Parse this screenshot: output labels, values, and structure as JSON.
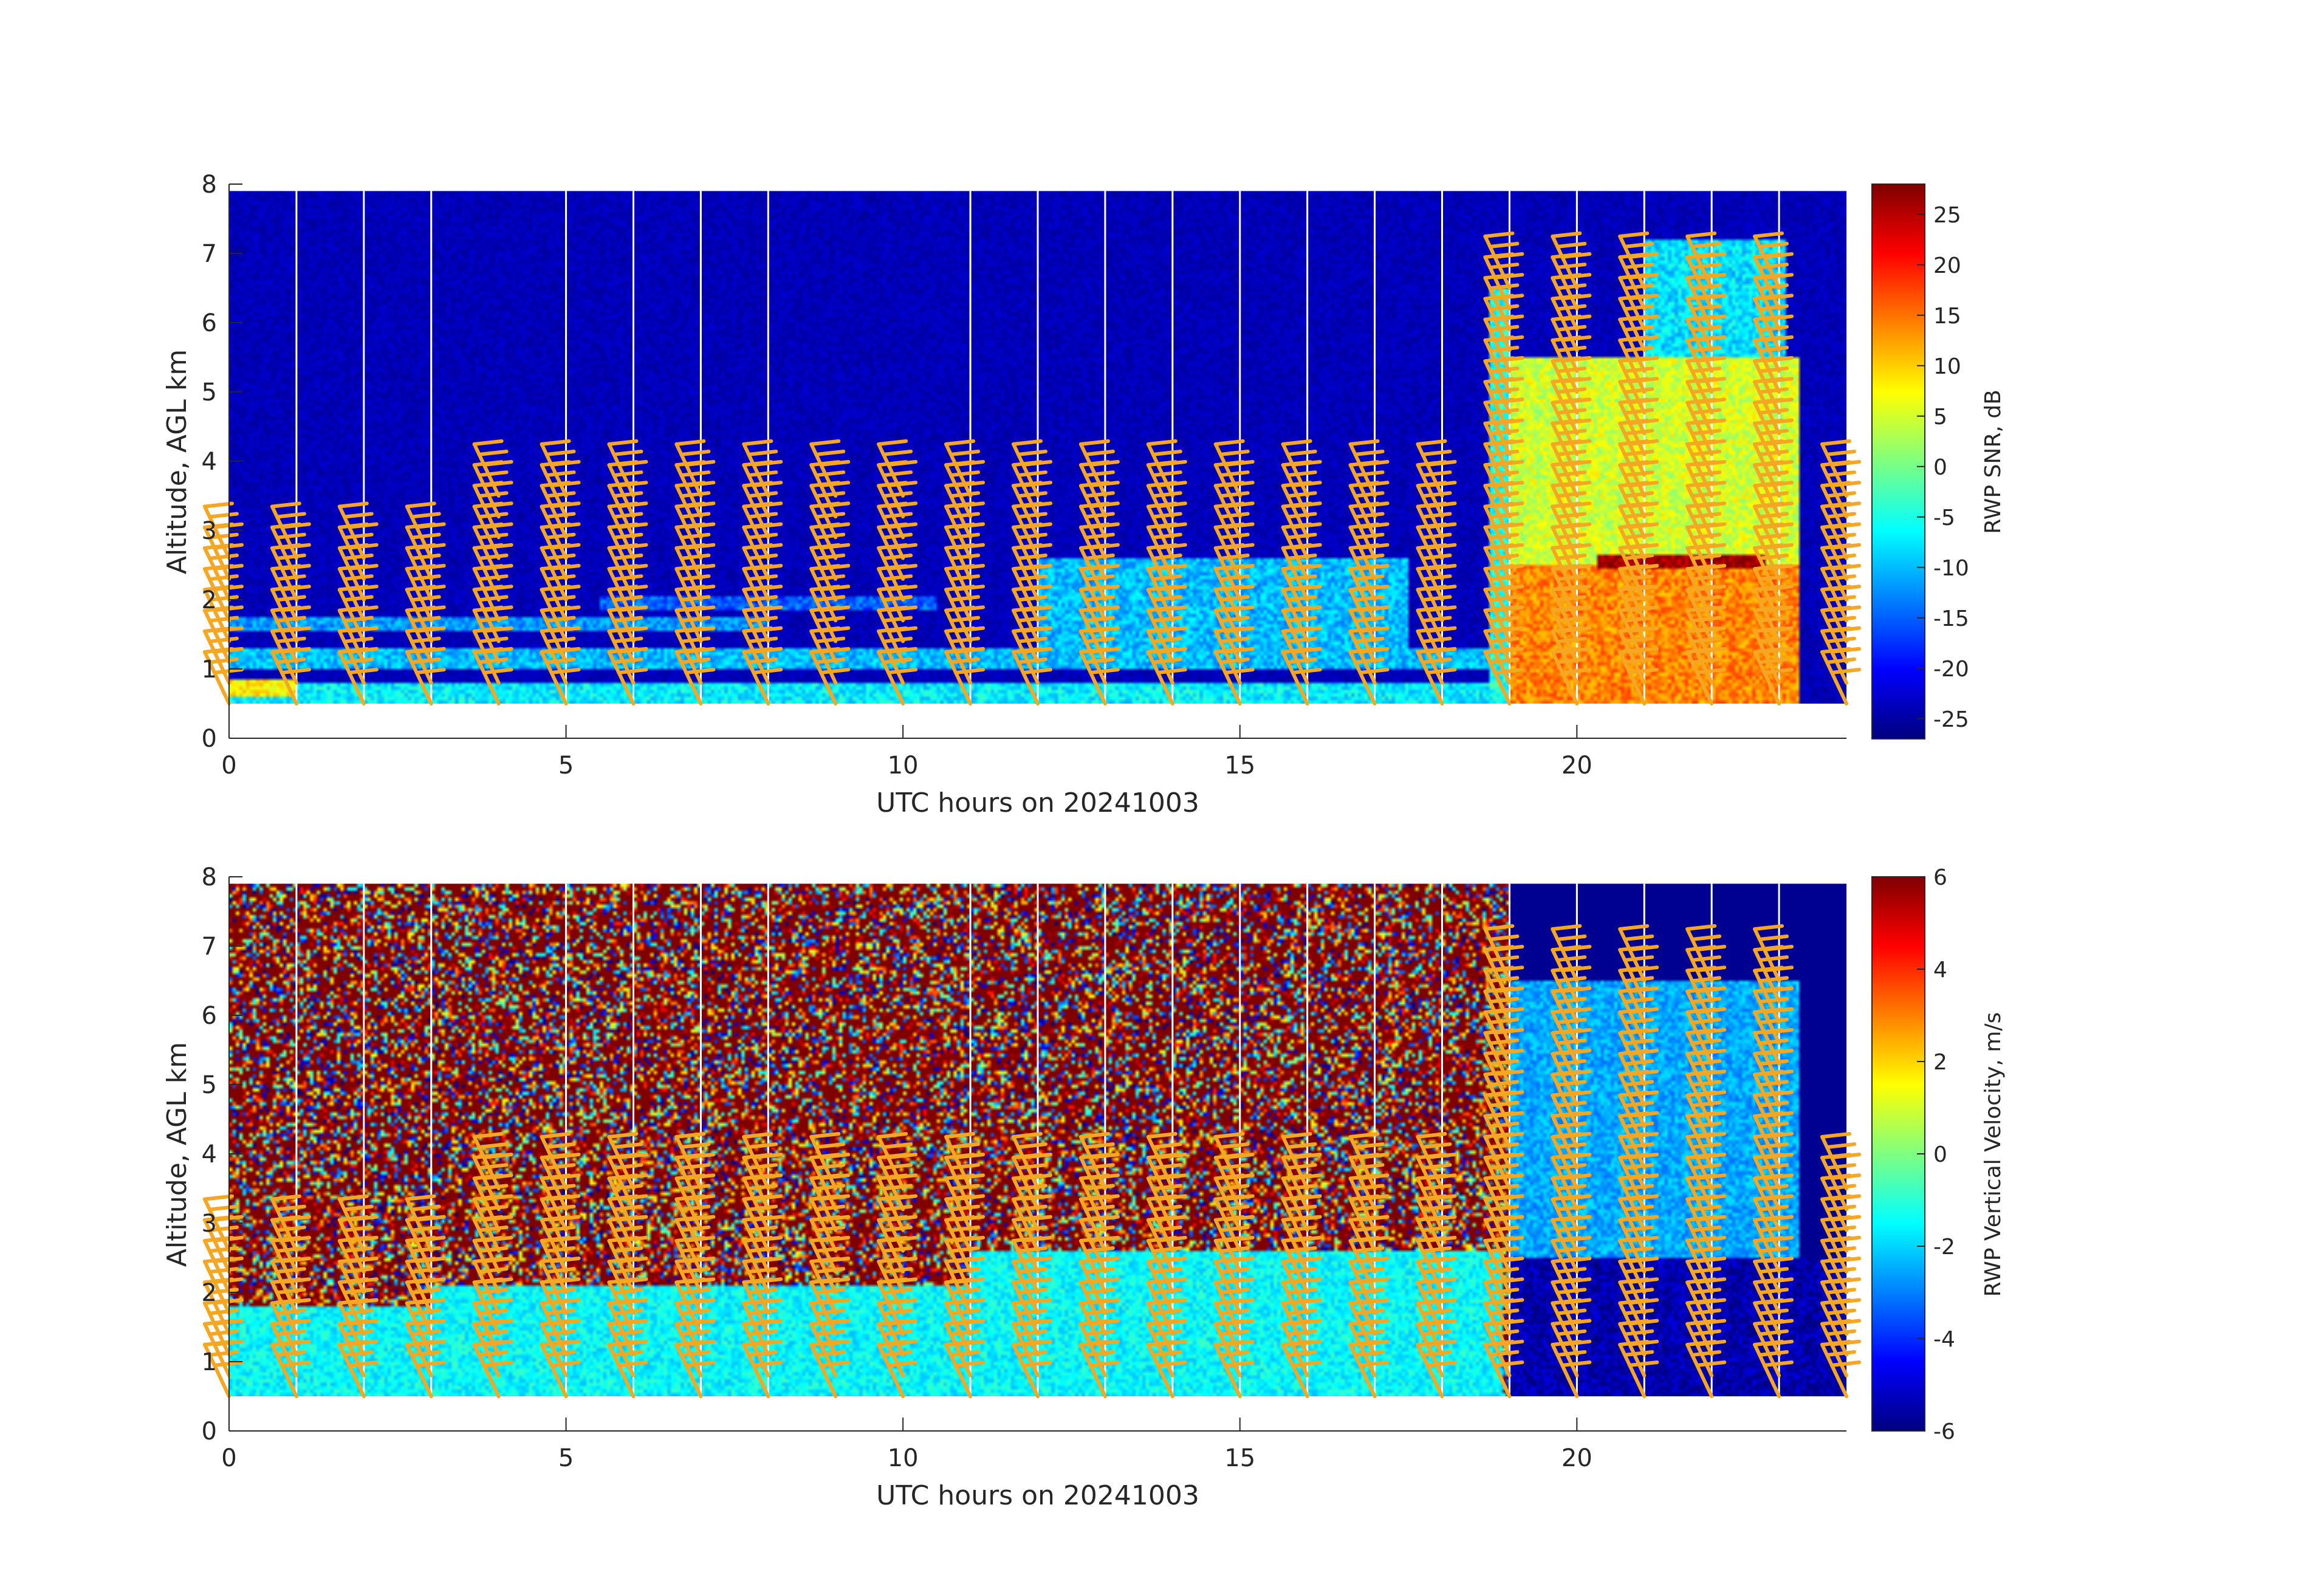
{
  "figure": {
    "colors": {
      "background": "#ffffff",
      "axis": "#262626",
      "barb": "#f5a623",
      "gap_lines": "#ffffff",
      "colormap": "jet"
    }
  },
  "chart_data": [
    {
      "type": "heatmap",
      "title": "",
      "xlabel": "UTC hours on 20241003",
      "ylabel": "Altitude, AGL km",
      "xlim": [
        0,
        24
      ],
      "ylim": [
        0,
        8
      ],
      "xticks": [
        "0",
        "5",
        "10",
        "15",
        "20"
      ],
      "yticks": [
        "0",
        "1",
        "2",
        "3",
        "4",
        "5",
        "6",
        "7",
        "8"
      ],
      "data_altitude_range_km": [
        0.5,
        7.9
      ],
      "colorbar": {
        "label": "RWP SNR, dB",
        "range": [
          -27,
          28
        ],
        "ticks": [
          "-25",
          "-20",
          "-15",
          "-10",
          "-5",
          "0",
          "5",
          "10",
          "15",
          "20",
          "25"
        ]
      },
      "data_gap_hours": [
        1,
        2,
        3,
        5,
        6,
        7,
        8,
        11,
        12,
        13,
        14,
        15,
        16,
        17,
        18,
        19,
        20,
        21,
        22,
        23
      ],
      "layers": [
        {
          "t_start": 0,
          "t_end": 18.9,
          "z_bottom_km": 0.5,
          "z_top_km": 0.8,
          "snr_db": -7
        },
        {
          "t_start": 0,
          "t_end": 1,
          "z_bottom_km": 0.6,
          "z_top_km": 0.85,
          "snr_db": 8
        },
        {
          "t_start": 0,
          "t_end": 18.7,
          "z_bottom_km": 1.0,
          "z_top_km": 1.3,
          "snr_db": -10
        },
        {
          "t_start": 0,
          "t_end": 8,
          "z_bottom_km": 1.55,
          "z_top_km": 1.75,
          "snr_db": -12
        },
        {
          "t_start": 5.5,
          "t_end": 10.5,
          "z_bottom_km": 1.85,
          "z_top_km": 2.05,
          "snr_db": -15
        },
        {
          "t_start": 12,
          "t_end": 17.5,
          "z_bottom_km": 1.3,
          "z_top_km": 2.6,
          "snr_db": -10
        },
        {
          "t_start": 18.7,
          "t_end": 19,
          "z_bottom_km": 0.5,
          "z_top_km": 6.5,
          "snr_db": -5
        },
        {
          "t_start": 19,
          "t_end": 23.3,
          "z_bottom_km": 0.5,
          "z_top_km": 2.5,
          "snr_db": 14
        },
        {
          "t_start": 19,
          "t_end": 23.3,
          "z_bottom_km": 2.5,
          "z_top_km": 5.5,
          "snr_db": 5
        },
        {
          "t_start": 20.3,
          "t_end": 22.8,
          "z_bottom_km": 2.45,
          "z_top_km": 2.65,
          "snr_db": 27
        },
        {
          "t_start": 21,
          "t_end": 23.1,
          "z_bottom_km": 5.5,
          "z_top_km": 7.2,
          "snr_db": -8
        }
      ],
      "wind_barb_times_hours": [
        0,
        1,
        2,
        3,
        4,
        5,
        6,
        7,
        8,
        9,
        10,
        11,
        12,
        13,
        14,
        15,
        16,
        17,
        18,
        19,
        20,
        21,
        22,
        23,
        24
      ]
    },
    {
      "type": "heatmap",
      "title": "",
      "xlabel": "UTC hours on 20241003",
      "ylabel": "Altitude, AGL km",
      "xlim": [
        0,
        24
      ],
      "ylim": [
        0,
        8
      ],
      "xticks": [
        "0",
        "5",
        "10",
        "15",
        "20"
      ],
      "yticks": [
        "0",
        "1",
        "2",
        "3",
        "4",
        "5",
        "6",
        "7",
        "8"
      ],
      "data_altitude_range_km": [
        0.5,
        7.9
      ],
      "colorbar": {
        "label": "RWP Vertical Velocity, m/s",
        "range": [
          -6,
          6
        ],
        "ticks": [
          "-6",
          "-4",
          "-2",
          "0",
          "2",
          "4",
          "6"
        ]
      },
      "data_gap_hours": [
        1,
        2,
        3,
        5,
        6,
        7,
        8,
        11,
        12,
        13,
        14,
        15,
        16,
        17,
        18,
        19,
        20,
        21,
        22,
        23
      ],
      "layers": [
        {
          "t_start": 0,
          "t_end": 19,
          "z_bottom_km": 0.5,
          "z_top_km": 7.9,
          "velocity_ms": 0,
          "noise": true
        },
        {
          "t_start": 0,
          "t_end": 3,
          "z_bottom_km": 0.5,
          "z_top_km": 1.8,
          "velocity_ms": -1.5
        },
        {
          "t_start": 3,
          "t_end": 11,
          "z_bottom_km": 0.5,
          "z_top_km": 2.1,
          "velocity_ms": -1.5
        },
        {
          "t_start": 11,
          "t_end": 18.9,
          "z_bottom_km": 0.5,
          "z_top_km": 2.6,
          "velocity_ms": -1.5
        },
        {
          "t_start": 19,
          "t_end": 23.3,
          "z_bottom_km": 2.5,
          "z_top_km": 6.5,
          "velocity_ms": -2.5
        },
        {
          "t_start": 19,
          "t_end": 24,
          "z_bottom_km": 0.5,
          "z_top_km": 2.5,
          "velocity_ms": -5.5
        }
      ],
      "wind_barb_times_hours": [
        0,
        1,
        2,
        3,
        4,
        5,
        6,
        7,
        8,
        9,
        10,
        11,
        12,
        13,
        14,
        15,
        16,
        17,
        18,
        19,
        20,
        21,
        22,
        23,
        24
      ]
    }
  ]
}
